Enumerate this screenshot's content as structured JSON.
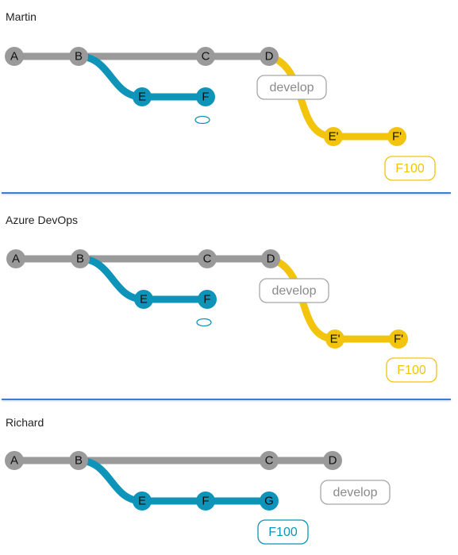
{
  "colors": {
    "main": "#9a9a9a",
    "feature": "#0e94b8",
    "rebased": "#f2c40c",
    "separator": "#3f7ecb",
    "develop_tag": "#a6a6a6"
  },
  "panels": [
    {
      "title": "Martin",
      "nodes": [
        {
          "id": "A",
          "label": "A",
          "branch": "main"
        },
        {
          "id": "B",
          "label": "B",
          "branch": "main"
        },
        {
          "id": "C",
          "label": "C",
          "branch": "main"
        },
        {
          "id": "D",
          "label": "D",
          "branch": "main"
        },
        {
          "id": "E",
          "label": "E",
          "branch": "feature"
        },
        {
          "id": "F",
          "label": "F",
          "branch": "feature"
        },
        {
          "id": "E2",
          "label": "E'",
          "branch": "rebased"
        },
        {
          "id": "F2",
          "label": "F'",
          "branch": "rebased"
        }
      ],
      "tags": [
        {
          "label": "develop",
          "branch": "develop_tag"
        },
        {
          "label": "F100",
          "branch": "rebased"
        }
      ],
      "orphan_marker": true
    },
    {
      "title": "Azure DevOps",
      "nodes": [
        {
          "id": "A",
          "label": "A",
          "branch": "main"
        },
        {
          "id": "B",
          "label": "B",
          "branch": "main"
        },
        {
          "id": "C",
          "label": "C",
          "branch": "main"
        },
        {
          "id": "D",
          "label": "D",
          "branch": "main"
        },
        {
          "id": "E",
          "label": "E",
          "branch": "feature"
        },
        {
          "id": "F",
          "label": "F",
          "branch": "feature"
        },
        {
          "id": "E2",
          "label": "E'",
          "branch": "rebased"
        },
        {
          "id": "F2",
          "label": "F'",
          "branch": "rebased"
        }
      ],
      "tags": [
        {
          "label": "develop",
          "branch": "develop_tag"
        },
        {
          "label": "F100",
          "branch": "rebased"
        }
      ],
      "orphan_marker": true
    },
    {
      "title": "Richard",
      "nodes": [
        {
          "id": "A",
          "label": "A",
          "branch": "main"
        },
        {
          "id": "B",
          "label": "B",
          "branch": "main"
        },
        {
          "id": "C",
          "label": "C",
          "branch": "main"
        },
        {
          "id": "D",
          "label": "D",
          "branch": "main"
        },
        {
          "id": "E",
          "label": "E",
          "branch": "feature"
        },
        {
          "id": "F",
          "label": "F",
          "branch": "feature"
        },
        {
          "id": "G",
          "label": "G",
          "branch": "feature"
        }
      ],
      "tags": [
        {
          "label": "develop",
          "branch": "develop_tag"
        },
        {
          "label": "F100",
          "branch": "feature"
        }
      ],
      "orphan_marker": false
    }
  ]
}
